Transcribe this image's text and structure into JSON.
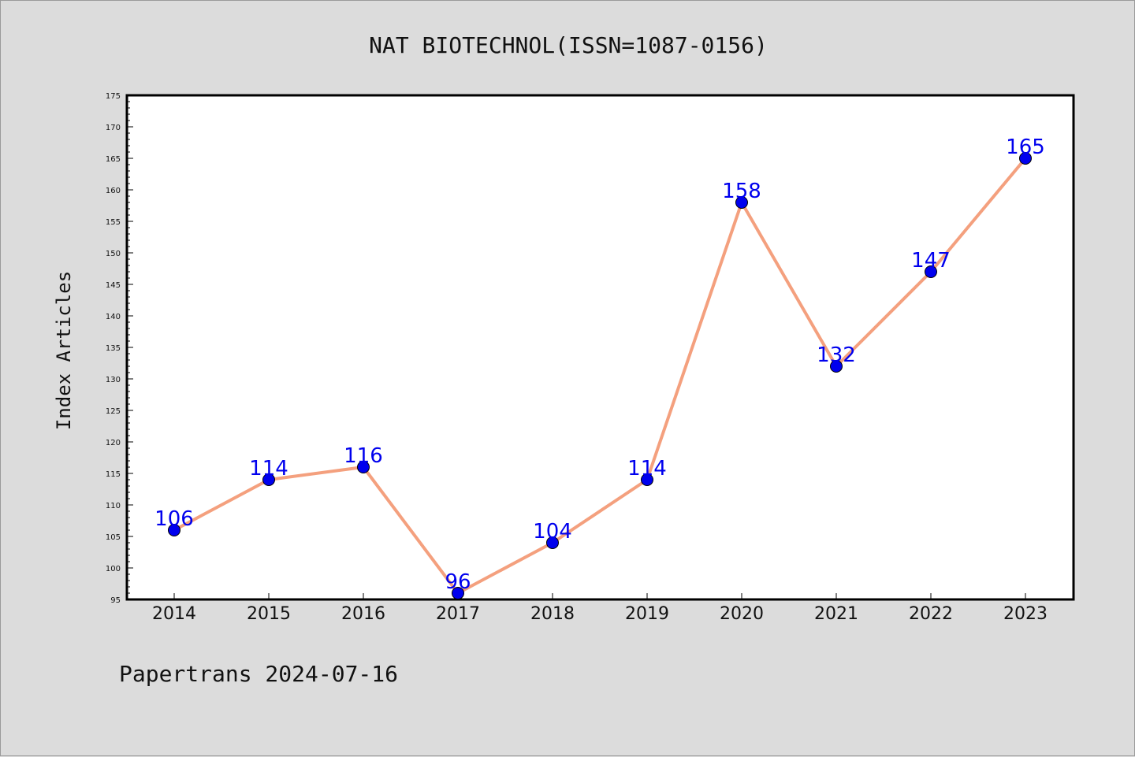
{
  "colors": {
    "background": "#dcdcdc",
    "plot_area": "#ffffff",
    "line": "#f4a07e",
    "marker": "#0000ee",
    "data_label": "#0000ee"
  },
  "footer": "Papertrans 2024-07-16",
  "chart_data": {
    "type": "line",
    "title": "NAT BIOTECHNOL(ISSN=1087-0156)",
    "xlabel": "",
    "ylabel": "Index Articles",
    "categories": [
      "2014",
      "2015",
      "2016",
      "2017",
      "2018",
      "2019",
      "2020",
      "2021",
      "2022",
      "2023"
    ],
    "series": [
      {
        "values": [
          106,
          114,
          116,
          96,
          104,
          114,
          158,
          132,
          147,
          165
        ]
      }
    ],
    "ylim": [
      95,
      175
    ],
    "yticks": [
      95,
      100,
      105,
      110,
      115,
      120,
      125,
      130,
      135,
      140,
      145,
      150,
      155,
      160,
      165,
      170,
      175
    ],
    "data_labels": true,
    "grid": false,
    "legend": "none"
  }
}
